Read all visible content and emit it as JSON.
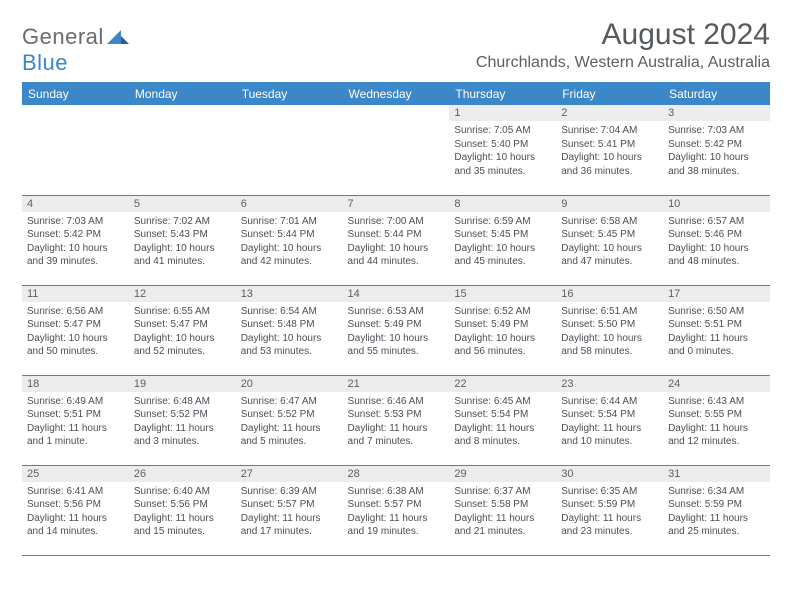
{
  "brand": {
    "word1": "General",
    "word2": "Blue"
  },
  "title": "August 2024",
  "location": "Churchlands, Western Australia, Australia",
  "colors": {
    "accent": "#3b87c8",
    "header_bg": "#3b87c8",
    "header_text": "#ffffff",
    "daynum_bg": "#ececec",
    "text": "#4a4f54",
    "title_text": "#555a5f"
  },
  "day_headers": [
    "Sunday",
    "Monday",
    "Tuesday",
    "Wednesday",
    "Thursday",
    "Friday",
    "Saturday"
  ],
  "weeks": [
    [
      null,
      null,
      null,
      null,
      {
        "n": "1",
        "sunrise": "7:05 AM",
        "sunset": "5:40 PM",
        "daylight": "10 hours and 35 minutes."
      },
      {
        "n": "2",
        "sunrise": "7:04 AM",
        "sunset": "5:41 PM",
        "daylight": "10 hours and 36 minutes."
      },
      {
        "n": "3",
        "sunrise": "7:03 AM",
        "sunset": "5:42 PM",
        "daylight": "10 hours and 38 minutes."
      }
    ],
    [
      {
        "n": "4",
        "sunrise": "7:03 AM",
        "sunset": "5:42 PM",
        "daylight": "10 hours and 39 minutes."
      },
      {
        "n": "5",
        "sunrise": "7:02 AM",
        "sunset": "5:43 PM",
        "daylight": "10 hours and 41 minutes."
      },
      {
        "n": "6",
        "sunrise": "7:01 AM",
        "sunset": "5:44 PM",
        "daylight": "10 hours and 42 minutes."
      },
      {
        "n": "7",
        "sunrise": "7:00 AM",
        "sunset": "5:44 PM",
        "daylight": "10 hours and 44 minutes."
      },
      {
        "n": "8",
        "sunrise": "6:59 AM",
        "sunset": "5:45 PM",
        "daylight": "10 hours and 45 minutes."
      },
      {
        "n": "9",
        "sunrise": "6:58 AM",
        "sunset": "5:45 PM",
        "daylight": "10 hours and 47 minutes."
      },
      {
        "n": "10",
        "sunrise": "6:57 AM",
        "sunset": "5:46 PM",
        "daylight": "10 hours and 48 minutes."
      }
    ],
    [
      {
        "n": "11",
        "sunrise": "6:56 AM",
        "sunset": "5:47 PM",
        "daylight": "10 hours and 50 minutes."
      },
      {
        "n": "12",
        "sunrise": "6:55 AM",
        "sunset": "5:47 PM",
        "daylight": "10 hours and 52 minutes."
      },
      {
        "n": "13",
        "sunrise": "6:54 AM",
        "sunset": "5:48 PM",
        "daylight": "10 hours and 53 minutes."
      },
      {
        "n": "14",
        "sunrise": "6:53 AM",
        "sunset": "5:49 PM",
        "daylight": "10 hours and 55 minutes."
      },
      {
        "n": "15",
        "sunrise": "6:52 AM",
        "sunset": "5:49 PM",
        "daylight": "10 hours and 56 minutes."
      },
      {
        "n": "16",
        "sunrise": "6:51 AM",
        "sunset": "5:50 PM",
        "daylight": "10 hours and 58 minutes."
      },
      {
        "n": "17",
        "sunrise": "6:50 AM",
        "sunset": "5:51 PM",
        "daylight": "11 hours and 0 minutes."
      }
    ],
    [
      {
        "n": "18",
        "sunrise": "6:49 AM",
        "sunset": "5:51 PM",
        "daylight": "11 hours and 1 minute."
      },
      {
        "n": "19",
        "sunrise": "6:48 AM",
        "sunset": "5:52 PM",
        "daylight": "11 hours and 3 minutes."
      },
      {
        "n": "20",
        "sunrise": "6:47 AM",
        "sunset": "5:52 PM",
        "daylight": "11 hours and 5 minutes."
      },
      {
        "n": "21",
        "sunrise": "6:46 AM",
        "sunset": "5:53 PM",
        "daylight": "11 hours and 7 minutes."
      },
      {
        "n": "22",
        "sunrise": "6:45 AM",
        "sunset": "5:54 PM",
        "daylight": "11 hours and 8 minutes."
      },
      {
        "n": "23",
        "sunrise": "6:44 AM",
        "sunset": "5:54 PM",
        "daylight": "11 hours and 10 minutes."
      },
      {
        "n": "24",
        "sunrise": "6:43 AM",
        "sunset": "5:55 PM",
        "daylight": "11 hours and 12 minutes."
      }
    ],
    [
      {
        "n": "25",
        "sunrise": "6:41 AM",
        "sunset": "5:56 PM",
        "daylight": "11 hours and 14 minutes."
      },
      {
        "n": "26",
        "sunrise": "6:40 AM",
        "sunset": "5:56 PM",
        "daylight": "11 hours and 15 minutes."
      },
      {
        "n": "27",
        "sunrise": "6:39 AM",
        "sunset": "5:57 PM",
        "daylight": "11 hours and 17 minutes."
      },
      {
        "n": "28",
        "sunrise": "6:38 AM",
        "sunset": "5:57 PM",
        "daylight": "11 hours and 19 minutes."
      },
      {
        "n": "29",
        "sunrise": "6:37 AM",
        "sunset": "5:58 PM",
        "daylight": "11 hours and 21 minutes."
      },
      {
        "n": "30",
        "sunrise": "6:35 AM",
        "sunset": "5:59 PM",
        "daylight": "11 hours and 23 minutes."
      },
      {
        "n": "31",
        "sunrise": "6:34 AM",
        "sunset": "5:59 PM",
        "daylight": "11 hours and 25 minutes."
      }
    ]
  ],
  "labels": {
    "sunrise": "Sunrise:",
    "sunset": "Sunset:",
    "daylight": "Daylight:"
  }
}
